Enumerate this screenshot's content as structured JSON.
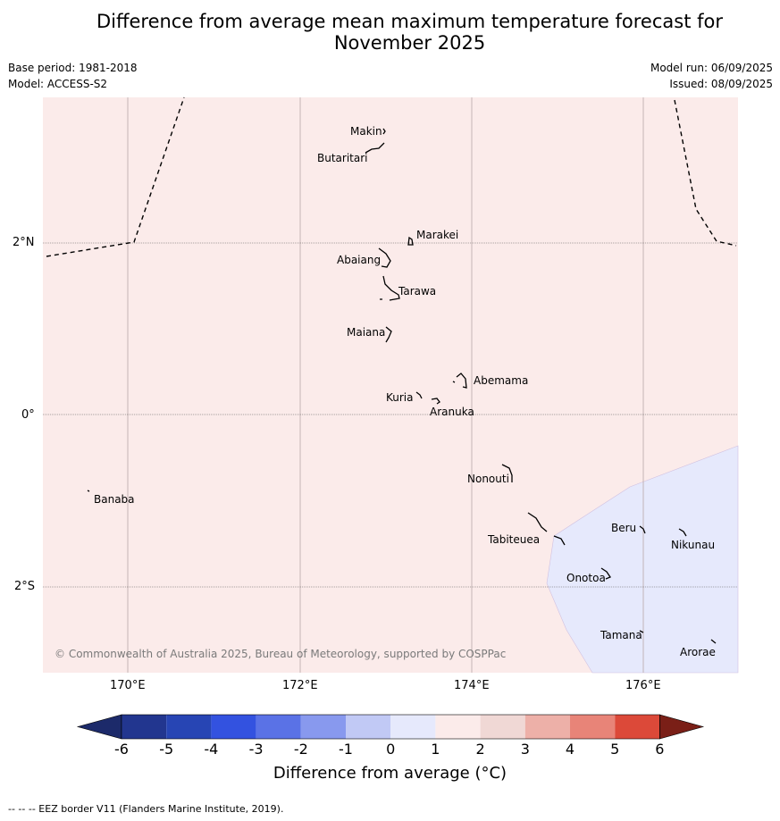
{
  "title_line1": "Difference from average mean maximum temperature forecast for",
  "title_line2": "November 2025",
  "meta_left": [
    "Base period: 1981-2018",
    "Model: ACCESS-S2"
  ],
  "meta_right": [
    "Model run: 06/09/2025",
    "Issued: 08/09/2025"
  ],
  "copyright": "© Commonwealth of Australia 2025, Bureau of Meteorology, supported by COSPPac",
  "lat_labels": [
    "2°N",
    "0°",
    "2°S"
  ],
  "lon_labels": [
    "170°E",
    "172°E",
    "174°E",
    "176°E"
  ],
  "islands": [
    "Makin",
    "Butaritari",
    "Marakei",
    "Abaiang",
    "Tarawa",
    "Maiana",
    "Abemama",
    "Kuria",
    "Aranuka",
    "Nonouti",
    "Banaba",
    "Tabiteuea",
    "Beru",
    "Nikunau",
    "Onotoa",
    "Tamana",
    "Arorae"
  ],
  "colorbar": {
    "ticks": [
      "-6",
      "-5",
      "-4",
      "-3",
      "-2",
      "-1",
      "0",
      "1",
      "2",
      "3",
      "4",
      "5",
      "6"
    ],
    "colors": [
      "#22368f",
      "#2745b4",
      "#3352e0",
      "#5a72e6",
      "#8899ee",
      "#c1c9f5",
      "#e6e9fc",
      "#fbebea",
      "#f0d8d5",
      "#edb0a8",
      "#e88478",
      "#dc4939",
      "#aa2a20"
    ],
    "under_color": "#1c2a6a",
    "over_color": "#7a1f17",
    "label": "Difference from average (°C)"
  },
  "footer": "--  --  -- EEZ border V11 (Flanders Marine Institute, 2019)."
}
